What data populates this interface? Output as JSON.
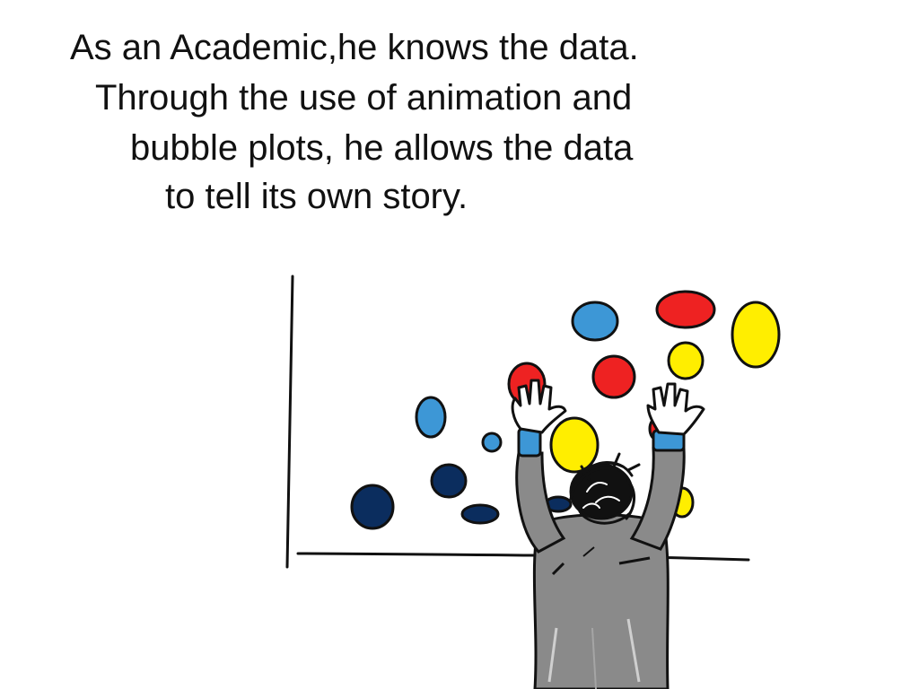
{
  "caption": {
    "line1": "As an Academic,he knows the data.",
    "line2": "Through the use of animation and",
    "line3": "bubble plots, he allows the data",
    "line4": "to tell its own story."
  },
  "palette": {
    "dark_blue": "#0b2d5e",
    "light_blue": "#3d97d6",
    "red": "#ee2222",
    "yellow": "#ffee00",
    "suit_gray": "#8a8a8a",
    "hair": "#111111"
  },
  "icons": {
    "figure": "academic-figure-icon",
    "chart": "bubble-chart-sketch-icon"
  }
}
